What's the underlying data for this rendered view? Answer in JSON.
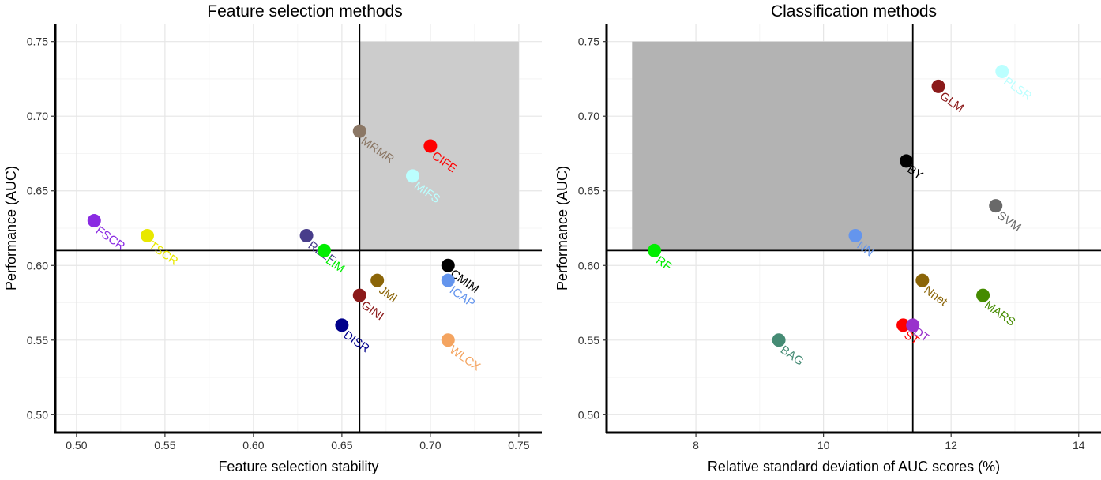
{
  "chart_data": [
    {
      "type": "scatter",
      "title": "Feature selection methods",
      "xlabel": "Feature selection stability",
      "ylabel": "Performance (AUC)",
      "xlim": [
        0.488,
        0.763
      ],
      "ylim": [
        0.488,
        0.762
      ],
      "xticks": [
        0.5,
        0.55,
        0.6,
        0.65,
        0.7,
        0.75
      ],
      "xtick_labels": [
        "0.50",
        "0.55",
        "0.60",
        "0.65",
        "0.70",
        "0.75"
      ],
      "yticks": [
        0.5,
        0.55,
        0.6,
        0.65,
        0.7,
        0.75
      ],
      "ytick_labels": [
        "0.50",
        "0.55",
        "0.60",
        "0.65",
        "0.70",
        "0.75"
      ],
      "shaded_region": {
        "x": [
          0.66,
          0.75
        ],
        "y": [
          0.61,
          0.75
        ],
        "color": "#cccccc"
      },
      "reference_lines": {
        "vertical": 0.66,
        "horizontal": 0.61
      },
      "points": [
        {
          "label": "FSCR",
          "x": 0.51,
          "y": 0.63,
          "color": "#8a2be2"
        },
        {
          "label": "TSCR",
          "x": 0.54,
          "y": 0.62,
          "color": "#e8e800"
        },
        {
          "label": "RELF",
          "x": 0.63,
          "y": 0.62,
          "color": "#483d8b"
        },
        {
          "label": "LIM",
          "x": 0.64,
          "y": 0.61,
          "color": "#00ee00"
        },
        {
          "label": "MRMR",
          "x": 0.66,
          "y": 0.69,
          "color": "#8b7765"
        },
        {
          "label": "CIFE",
          "x": 0.7,
          "y": 0.68,
          "color": "#ff0000"
        },
        {
          "label": "MIFS",
          "x": 0.69,
          "y": 0.66,
          "color": "#bbffff"
        },
        {
          "label": "CMIM",
          "x": 0.71,
          "y": 0.6,
          "color": "#000000"
        },
        {
          "label": "ICAP",
          "x": 0.71,
          "y": 0.59,
          "color": "#6495ed"
        },
        {
          "label": "JMI",
          "x": 0.67,
          "y": 0.59,
          "color": "#8b6508"
        },
        {
          "label": "GINI",
          "x": 0.66,
          "y": 0.58,
          "color": "#8b1a1a"
        },
        {
          "label": "DISR",
          "x": 0.65,
          "y": 0.56,
          "color": "#00008b"
        },
        {
          "label": "WLCX",
          "x": 0.71,
          "y": 0.55,
          "color": "#f4a460"
        }
      ]
    },
    {
      "type": "scatter",
      "title": "Classification methods",
      "xlabel": "Relative standard deviation of AUC scores (%)",
      "ylabel": "Performance (AUC)",
      "xlim": [
        6.6,
        14.35
      ],
      "ylim": [
        0.488,
        0.762
      ],
      "xticks": [
        8,
        10,
        12,
        14
      ],
      "xtick_labels": [
        "8",
        "10",
        "12",
        "14"
      ],
      "yticks": [
        0.5,
        0.55,
        0.6,
        0.65,
        0.7,
        0.75
      ],
      "ytick_labels": [
        "0.50",
        "0.55",
        "0.60",
        "0.65",
        "0.70",
        "0.75"
      ],
      "shaded_region": {
        "x": [
          7.0,
          11.4
        ],
        "y": [
          0.61,
          0.75
        ],
        "color": "#b3b3b3"
      },
      "reference_lines": {
        "vertical": 11.4,
        "horizontal": 0.61
      },
      "points": [
        {
          "label": "PLSR",
          "x": 12.8,
          "y": 0.73,
          "color": "#bbffff"
        },
        {
          "label": "GLM",
          "x": 11.8,
          "y": 0.72,
          "color": "#8b1a1a"
        },
        {
          "label": "BY",
          "x": 11.3,
          "y": 0.67,
          "color": "#000000"
        },
        {
          "label": "SVM",
          "x": 12.7,
          "y": 0.64,
          "color": "#696969"
        },
        {
          "label": "NN",
          "x": 10.5,
          "y": 0.62,
          "color": "#6495ed"
        },
        {
          "label": "RF",
          "x": 7.35,
          "y": 0.61,
          "color": "#00ee00"
        },
        {
          "label": "Nnet",
          "x": 11.55,
          "y": 0.59,
          "color": "#8b6508"
        },
        {
          "label": "MARS",
          "x": 12.5,
          "y": 0.58,
          "color": "#458b00"
        },
        {
          "label": "ST",
          "x": 11.25,
          "y": 0.56,
          "color": "#ff0000"
        },
        {
          "label": "DT",
          "x": 11.4,
          "y": 0.56,
          "color": "#9932cc"
        },
        {
          "label": "BAG",
          "x": 9.3,
          "y": 0.55,
          "color": "#458b74"
        }
      ]
    }
  ]
}
